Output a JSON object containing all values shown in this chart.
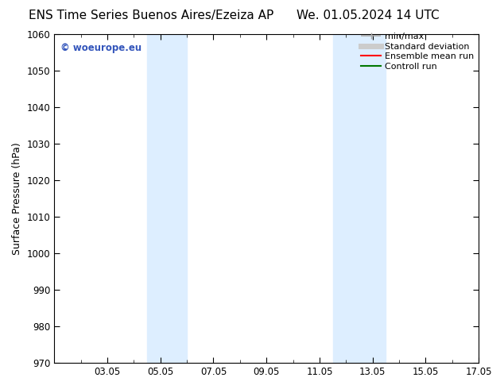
{
  "title": "ENS Time Series Buenos Aires/Ezeiza AP     We. 01.05.2024 14 UTC",
  "title_left": "ENS Time Series Buenos Aires/Ezeiza AP",
  "title_right": "We. 01.05.2024 14 UTC",
  "ylabel": "Surface Pressure (hPa)",
  "ylim": [
    970,
    1060
  ],
  "yticks": [
    970,
    980,
    990,
    1000,
    1010,
    1020,
    1030,
    1040,
    1050,
    1060
  ],
  "xlim": [
    0,
    16
  ],
  "xtick_labels": [
    "03.05",
    "05.05",
    "07.05",
    "09.05",
    "11.05",
    "13.05",
    "15.05",
    "17.05"
  ],
  "xtick_positions": [
    2,
    4,
    6,
    8,
    10,
    12,
    14,
    16
  ],
  "minor_xtick_positions": [
    0,
    1,
    2,
    3,
    4,
    5,
    6,
    7,
    8,
    9,
    10,
    11,
    12,
    13,
    14,
    15,
    16
  ],
  "shaded_bands": [
    {
      "x_start": 3.5,
      "x_end": 5.0,
      "color": "#ddeeff"
    },
    {
      "x_start": 10.5,
      "x_end": 12.5,
      "color": "#ddeeff"
    }
  ],
  "watermark_text": "© woeurope.eu",
  "watermark_color": "#3355bb",
  "legend_items": [
    {
      "label": "min/max",
      "color": "#aaaaaa",
      "lw": 1.2,
      "style": "minmax"
    },
    {
      "label": "Standard deviation",
      "color": "#cccccc",
      "lw": 5,
      "style": "line"
    },
    {
      "label": "Ensemble mean run",
      "color": "#ff0000",
      "lw": 1.5,
      "style": "line"
    },
    {
      "label": "Controll run",
      "color": "#007700",
      "lw": 1.5,
      "style": "line"
    }
  ],
  "bg_color": "#ffffff",
  "title_fontsize": 11,
  "axis_fontsize": 9,
  "tick_fontsize": 8.5,
  "legend_fontsize": 8
}
